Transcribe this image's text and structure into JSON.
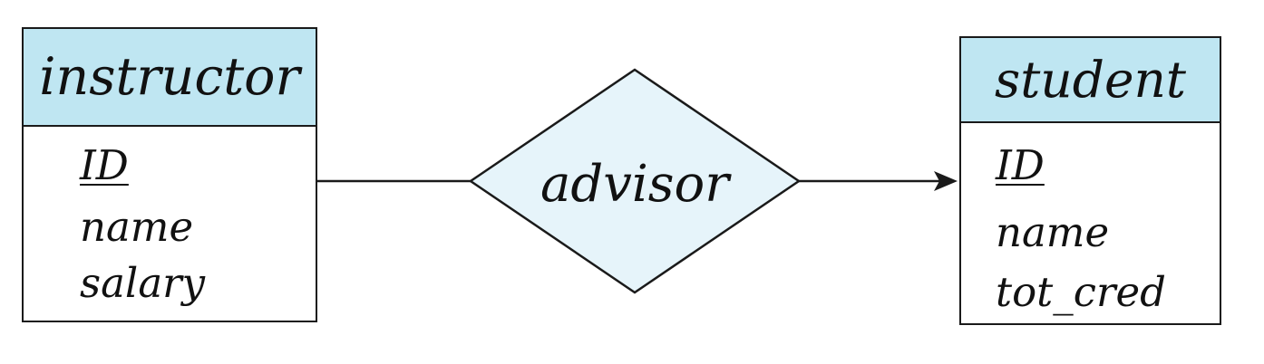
{
  "colors": {
    "entity_header_fill": "#bfe6f2",
    "relationship_fill": "#e6f4fa",
    "stroke": "#1a1a1a",
    "text": "#111111",
    "background": "#ffffff"
  },
  "entities": [
    {
      "name": "instructor",
      "attributes": [
        {
          "label": "ID",
          "primary_key": true
        },
        {
          "label": "name",
          "primary_key": false
        },
        {
          "label": "salary",
          "primary_key": false
        }
      ]
    },
    {
      "name": "student",
      "attributes": [
        {
          "label": "ID",
          "primary_key": true
        },
        {
          "label": "name",
          "primary_key": false
        },
        {
          "label": "tot_cred",
          "primary_key": false
        }
      ]
    }
  ],
  "relationship": {
    "name": "advisor",
    "left_connection": "line",
    "right_connection": "arrow"
  }
}
